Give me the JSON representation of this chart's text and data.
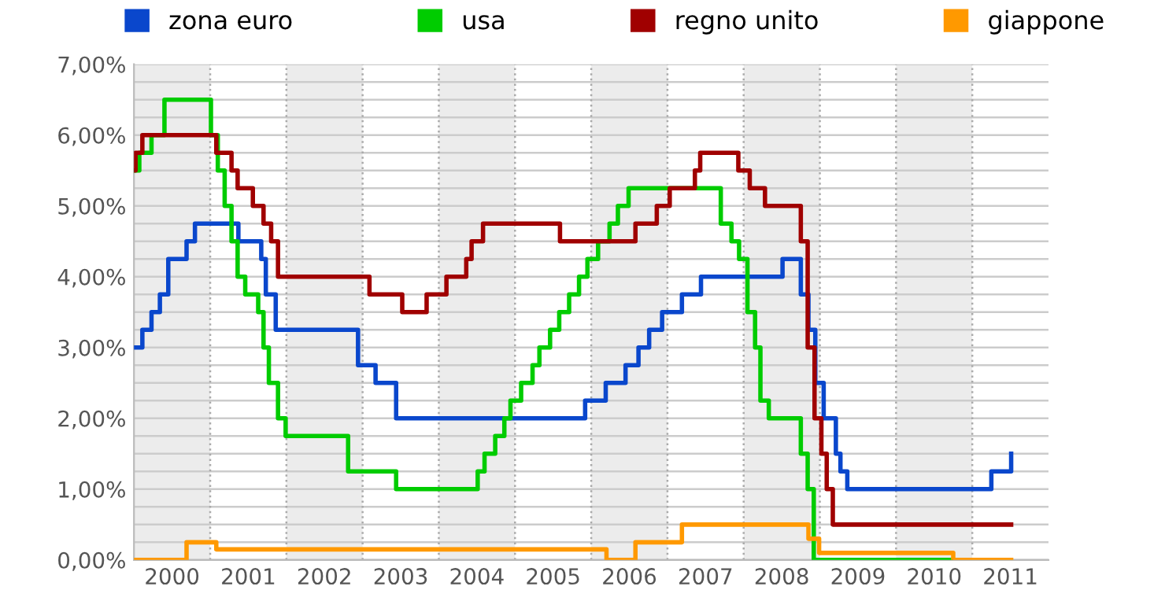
{
  "chart_data": {
    "type": "step",
    "xlim": [
      2000,
      2012
    ],
    "ylim": [
      0,
      7
    ],
    "xticks": [
      {
        "value": 2000.5,
        "label": "2000"
      },
      {
        "value": 2001.5,
        "label": "2001"
      },
      {
        "value": 2002.5,
        "label": "2002"
      },
      {
        "value": 2003.5,
        "label": "2003"
      },
      {
        "value": 2004.5,
        "label": "2004"
      },
      {
        "value": 2005.5,
        "label": "2005"
      },
      {
        "value": 2006.5,
        "label": "2006"
      },
      {
        "value": 2007.5,
        "label": "2007"
      },
      {
        "value": 2008.5,
        "label": "2008"
      },
      {
        "value": 2009.5,
        "label": "2009"
      },
      {
        "value": 2010.5,
        "label": "2010"
      },
      {
        "value": 2011.5,
        "label": "2011"
      }
    ],
    "yticks": [
      {
        "value": 0,
        "label": "0,00%"
      },
      {
        "value": 0.25,
        "label": null
      },
      {
        "value": 0.5,
        "label": null
      },
      {
        "value": 0.75,
        "label": null
      },
      {
        "value": 1,
        "label": "1,00%"
      },
      {
        "value": 1.25,
        "label": null
      },
      {
        "value": 1.5,
        "label": null
      },
      {
        "value": 1.75,
        "label": null
      },
      {
        "value": 2,
        "label": "2,00%"
      },
      {
        "value": 2.25,
        "label": null
      },
      {
        "value": 2.5,
        "label": null
      },
      {
        "value": 2.75,
        "label": null
      },
      {
        "value": 3,
        "label": "3,00%"
      },
      {
        "value": 3.25,
        "label": null
      },
      {
        "value": 3.5,
        "label": null
      },
      {
        "value": 3.75,
        "label": null
      },
      {
        "value": 4,
        "label": "4,00%"
      },
      {
        "value": 4.25,
        "label": null
      },
      {
        "value": 4.5,
        "label": null
      },
      {
        "value": 4.75,
        "label": null
      },
      {
        "value": 5,
        "label": "5,00%"
      },
      {
        "value": 5.25,
        "label": null
      },
      {
        "value": 5.5,
        "label": null
      },
      {
        "value": 5.75,
        "label": null
      },
      {
        "value": 6,
        "label": "6,00%"
      },
      {
        "value": 6.25,
        "label": null
      },
      {
        "value": 6.5,
        "label": null
      },
      {
        "value": 6.75,
        "label": null
      },
      {
        "value": 7,
        "label": "7,00%"
      }
    ],
    "grid": "y",
    "legend": "top",
    "line_style": "solid",
    "marker": "none",
    "bands": [
      {
        "axis": "x",
        "from": 2000,
        "to": 2001,
        "color": "#ececec"
      },
      {
        "axis": "x",
        "from": 2002,
        "to": 2003,
        "color": "#ececec"
      },
      {
        "axis": "x",
        "from": 2004,
        "to": 2005,
        "color": "#ececec"
      },
      {
        "axis": "x",
        "from": 2006,
        "to": 2007,
        "color": "#ececec"
      },
      {
        "axis": "x",
        "from": 2008,
        "to": 2009,
        "color": "#ececec"
      },
      {
        "axis": "x",
        "from": 2010,
        "to": 2011,
        "color": "#ececec"
      }
    ],
    "ref_lines": [
      {
        "axis": "x",
        "value": 2001,
        "line_style": "dotted",
        "color": "#aaaaaa"
      },
      {
        "axis": "x",
        "value": 2002,
        "line_style": "dotted",
        "color": "#aaaaaa"
      },
      {
        "axis": "x",
        "value": 2003,
        "line_style": "dotted",
        "color": "#aaaaaa"
      },
      {
        "axis": "x",
        "value": 2004,
        "line_style": "dotted",
        "color": "#aaaaaa"
      },
      {
        "axis": "x",
        "value": 2005,
        "line_style": "dotted",
        "color": "#aaaaaa"
      },
      {
        "axis": "x",
        "value": 2006,
        "line_style": "dotted",
        "color": "#aaaaaa"
      },
      {
        "axis": "x",
        "value": 2007,
        "line_style": "dotted",
        "color": "#aaaaaa"
      },
      {
        "axis": "x",
        "value": 2008,
        "line_style": "dotted",
        "color": "#aaaaaa"
      },
      {
        "axis": "x",
        "value": 2009,
        "line_style": "dotted",
        "color": "#aaaaaa"
      },
      {
        "axis": "x",
        "value": 2010,
        "line_style": "dotted",
        "color": "#aaaaaa"
      },
      {
        "axis": "x",
        "value": 2011,
        "line_style": "dotted",
        "color": "#aaaaaa"
      }
    ],
    "series": [
      {
        "name": "zona euro",
        "color": "#0a47cc",
        "x": [
          2000.0,
          2000.11,
          2000.23,
          2000.34,
          2000.45,
          2000.69,
          2000.8,
          2001.37,
          2001.67,
          2001.73,
          2001.86,
          2002.94,
          2003.17,
          2003.44,
          2005.92,
          2006.19,
          2006.45,
          2006.62,
          2006.76,
          2006.93,
          2007.19,
          2007.44,
          2008.51,
          2008.75,
          2008.85,
          2008.94,
          2009.05,
          2009.21,
          2009.27,
          2009.36,
          2011.25,
          2011.51
        ],
        "values": [
          3.0,
          3.25,
          3.5,
          3.75,
          4.25,
          4.5,
          4.75,
          4.5,
          4.25,
          3.75,
          3.25,
          2.75,
          2.5,
          2.0,
          2.25,
          2.5,
          2.75,
          3.0,
          3.25,
          3.5,
          3.75,
          4.0,
          4.25,
          3.75,
          3.25,
          2.5,
          2.0,
          1.5,
          1.25,
          1.0,
          1.25,
          1.5
        ]
      },
      {
        "name": "usa",
        "color": "#00cc00",
        "x": [
          2000.0,
          2000.07,
          2000.23,
          2000.4,
          2001.01,
          2001.1,
          2001.19,
          2001.28,
          2001.36,
          2001.46,
          2001.63,
          2001.7,
          2001.77,
          2001.89,
          2001.99,
          2002.81,
          2003.44,
          2004.51,
          2004.6,
          2004.74,
          2004.86,
          2004.94,
          2005.08,
          2005.23,
          2005.32,
          2005.46,
          2005.58,
          2005.71,
          2005.84,
          2005.95,
          2006.09,
          2006.24,
          2006.35,
          2006.49,
          2007.7,
          2007.84,
          2007.94,
          2008.05,
          2008.15,
          2008.22,
          2008.33,
          2008.75,
          2008.84,
          2008.92,
          2010.72
        ],
        "values": [
          5.5,
          5.75,
          6.0,
          6.5,
          6.0,
          5.5,
          5.0,
          4.5,
          4.0,
          3.75,
          3.5,
          3.0,
          2.5,
          2.0,
          1.75,
          1.25,
          1.0,
          1.25,
          1.5,
          1.75,
          2.0,
          2.25,
          2.5,
          2.75,
          3.0,
          3.25,
          3.5,
          3.75,
          4.0,
          4.25,
          4.5,
          4.75,
          5.0,
          5.25,
          4.75,
          4.5,
          4.25,
          3.5,
          3.0,
          2.25,
          2.0,
          1.5,
          1.0,
          0.0,
          0.0
        ]
      },
      {
        "name": "regno unito",
        "color": "#a00000",
        "x": [
          2000.0,
          2000.02,
          2000.11,
          2001.08,
          2001.28,
          2001.36,
          2001.56,
          2001.7,
          2001.8,
          2001.89,
          2003.09,
          2003.52,
          2003.84,
          2004.1,
          2004.36,
          2004.43,
          2004.58,
          2005.59,
          2006.58,
          2006.86,
          2007.03,
          2007.36,
          2007.43,
          2007.93,
          2008.08,
          2008.28,
          2008.75,
          2008.84,
          2008.93,
          2009.02,
          2009.09,
          2009.17,
          2011.51
        ],
        "values": [
          5.5,
          5.75,
          6.0,
          5.75,
          5.5,
          5.25,
          5.0,
          4.75,
          4.5,
          4.0,
          3.75,
          3.5,
          3.75,
          4.0,
          4.25,
          4.5,
          4.75,
          4.5,
          4.75,
          5.0,
          5.25,
          5.5,
          5.75,
          5.5,
          5.25,
          5.0,
          4.5,
          3.0,
          2.0,
          1.5,
          1.0,
          0.5,
          0.5
        ]
      },
      {
        "name": "giappone",
        "color": "#ff9900",
        "x": [
          2000.0,
          2000.69,
          2001.08,
          2006.2,
          2006.58,
          2007.19,
          2008.85,
          2008.99,
          2010.75,
          2011.51
        ],
        "values": [
          0.0,
          0.25,
          0.15,
          0.0,
          0.25,
          0.5,
          0.3,
          0.1,
          0.0,
          0.0
        ]
      }
    ]
  }
}
